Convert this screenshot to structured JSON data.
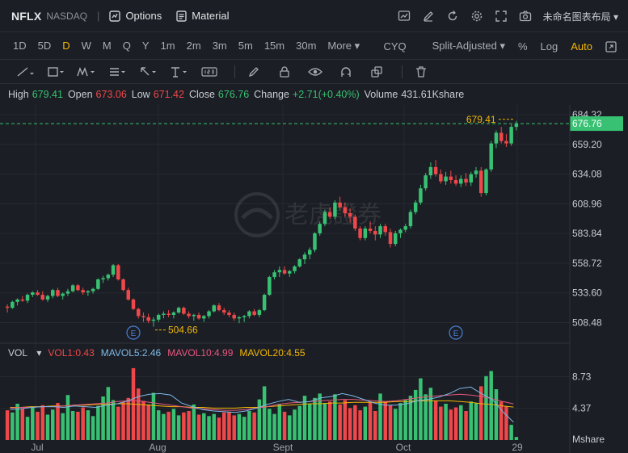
{
  "header": {
    "symbol": "NFLX",
    "exchange": "NASDAQ",
    "options_label": "Options",
    "material_label": "Material",
    "layout_label": "未命名图表布局"
  },
  "periods": [
    "1D",
    "5D",
    "D",
    "W",
    "M",
    "Q",
    "Y",
    "1m",
    "2m",
    "3m",
    "5m",
    "15m",
    "30m",
    "More"
  ],
  "active_period": "D",
  "period_right": {
    "cyq": "CYQ",
    "adjust": "Split-Adjusted",
    "percent": "%",
    "log": "Log",
    "auto": "Auto"
  },
  "info": {
    "high_label": "High",
    "high": "679.41",
    "open_label": "Open",
    "open": "673.06",
    "low_label": "Low",
    "low": "671.42",
    "close_label": "Close",
    "close": "676.76",
    "change_label": "Change",
    "change": "+2.71(+0.40%)",
    "volume_label": "Volume",
    "volume": "431.61Kshare"
  },
  "price_axis": {
    "ticks": [
      684.32,
      659.2,
      634.08,
      608.96,
      583.84,
      558.72,
      533.6,
      508.48
    ],
    "current": "676.76",
    "high_marker": "679.41",
    "low_marker": "504.66"
  },
  "volume": {
    "label": "VOL",
    "vol1": "VOL1:0.43",
    "mavol5": "MAVOL5:2.46",
    "mavol10": "MAVOL10:4.99",
    "mavol20": "MAVOL20:4.55",
    "ticks": [
      "8.73",
      "4.37"
    ],
    "unit": "Mshare"
  },
  "date_labels": [
    "Jul",
    "Aug",
    "Sept",
    "Oct",
    "29"
  ],
  "watermark": "老虎證券",
  "colors": {
    "up": "#38c172",
    "down": "#f0484a",
    "accent": "#f2b705",
    "bg": "#1b1e24"
  },
  "chart_data": {
    "type": "candlestick",
    "x_axis": [
      "Jul",
      "Aug",
      "Sept",
      "Oct",
      "29"
    ],
    "y_range": [
      495,
      690
    ],
    "candles": [
      [
        522,
        524,
        517,
        521
      ],
      [
        521,
        527,
        520,
        526
      ],
      [
        526,
        529,
        523,
        528
      ],
      [
        528,
        531,
        526,
        527
      ],
      [
        527,
        533,
        525,
        532
      ],
      [
        532,
        535,
        530,
        534
      ],
      [
        534,
        536,
        531,
        532
      ],
      [
        532,
        535,
        527,
        528
      ],
      [
        528,
        532,
        526,
        531
      ],
      [
        531,
        537,
        529,
        536
      ],
      [
        536,
        538,
        530,
        531
      ],
      [
        531,
        534,
        528,
        533
      ],
      [
        533,
        537,
        531,
        535
      ],
      [
        535,
        541,
        534,
        540
      ],
      [
        540,
        541,
        535,
        536
      ],
      [
        536,
        538,
        532,
        534
      ],
      [
        534,
        536,
        531,
        535
      ],
      [
        535,
        538,
        533,
        537
      ],
      [
        537,
        546,
        536,
        545
      ],
      [
        545,
        548,
        542,
        546
      ],
      [
        546,
        550,
        544,
        549
      ],
      [
        549,
        558,
        547,
        557
      ],
      [
        557,
        558,
        544,
        545
      ],
      [
        545,
        546,
        535,
        536
      ],
      [
        536,
        538,
        527,
        528
      ],
      [
        528,
        529,
        519,
        520
      ],
      [
        520,
        521,
        512,
        514
      ],
      [
        514,
        517,
        509,
        513
      ],
      [
        513,
        516,
        508,
        510
      ],
      [
        510,
        513,
        505,
        511
      ],
      [
        511,
        516,
        509,
        515
      ],
      [
        515,
        518,
        512,
        516
      ],
      [
        516,
        519,
        513,
        515
      ],
      [
        515,
        518,
        512,
        517
      ],
      [
        517,
        522,
        516,
        521
      ],
      [
        521,
        522,
        515,
        516
      ],
      [
        516,
        518,
        512,
        514
      ],
      [
        514,
        516,
        510,
        515
      ],
      [
        515,
        517,
        511,
        512
      ],
      [
        512,
        515,
        509,
        514
      ],
      [
        514,
        519,
        512,
        518
      ],
      [
        518,
        524,
        517,
        523
      ],
      [
        523,
        525,
        518,
        519
      ],
      [
        519,
        521,
        515,
        517
      ],
      [
        517,
        519,
        513,
        515
      ],
      [
        515,
        517,
        510,
        512
      ],
      [
        512,
        514,
        508,
        513
      ],
      [
        513,
        515,
        509,
        514
      ],
      [
        514,
        519,
        512,
        518
      ],
      [
        518,
        520,
        514,
        515
      ],
      [
        515,
        520,
        513,
        519
      ],
      [
        519,
        533,
        518,
        532
      ],
      [
        532,
        548,
        531,
        547
      ],
      [
        547,
        553,
        545,
        551
      ],
      [
        551,
        556,
        547,
        553
      ],
      [
        553,
        556,
        549,
        550
      ],
      [
        550,
        553,
        547,
        552
      ],
      [
        552,
        557,
        550,
        556
      ],
      [
        556,
        563,
        555,
        562
      ],
      [
        562,
        568,
        558,
        566
      ],
      [
        566,
        572,
        562,
        570
      ],
      [
        570,
        585,
        568,
        584
      ],
      [
        584,
        594,
        582,
        592
      ],
      [
        592,
        604,
        590,
        602
      ],
      [
        602,
        606,
        596,
        598
      ],
      [
        598,
        612,
        596,
        610
      ],
      [
        610,
        615,
        604,
        606
      ],
      [
        606,
        610,
        598,
        601
      ],
      [
        601,
        605,
        593,
        598
      ],
      [
        598,
        600,
        586,
        588
      ],
      [
        588,
        590,
        578,
        580
      ],
      [
        580,
        590,
        578,
        588
      ],
      [
        588,
        594,
        584,
        586
      ],
      [
        586,
        590,
        578,
        583
      ],
      [
        583,
        592,
        580,
        590
      ],
      [
        590,
        592,
        582,
        585
      ],
      [
        585,
        588,
        572,
        575
      ],
      [
        575,
        586,
        573,
        584
      ],
      [
        584,
        588,
        580,
        587
      ],
      [
        587,
        592,
        585,
        590
      ],
      [
        590,
        604,
        588,
        602
      ],
      [
        602,
        612,
        600,
        610
      ],
      [
        610,
        625,
        608,
        622
      ],
      [
        622,
        635,
        620,
        633
      ],
      [
        633,
        644,
        630,
        640
      ],
      [
        640,
        646,
        632,
        634
      ],
      [
        634,
        638,
        626,
        628
      ],
      [
        628,
        636,
        625,
        632
      ],
      [
        632,
        637,
        626,
        629
      ],
      [
        629,
        633,
        624,
        626
      ],
      [
        626,
        633,
        623,
        630
      ],
      [
        630,
        635,
        624,
        627
      ],
      [
        627,
        636,
        624,
        634
      ],
      [
        634,
        640,
        631,
        637
      ],
      [
        637,
        640,
        615,
        618
      ],
      [
        618,
        639,
        616,
        638
      ],
      [
        638,
        662,
        636,
        660
      ],
      [
        660,
        671,
        656,
        669
      ],
      [
        669,
        674,
        660,
        662
      ],
      [
        662,
        668,
        657,
        660
      ],
      [
        660,
        676,
        658,
        674
      ],
      [
        674,
        679,
        671,
        677
      ]
    ],
    "volumes": [
      4.1,
      3.8,
      5.0,
      4.4,
      3.2,
      4.6,
      3.9,
      4.8,
      3.5,
      4.2,
      5.1,
      3.7,
      6.2,
      4.0,
      3.9,
      4.5,
      4.1,
      3.3,
      4.7,
      6.0,
      7.3,
      5.5,
      4.6,
      5.2,
      5.8,
      9.9,
      7.1,
      5.4,
      4.9,
      6.5,
      4.1,
      3.6,
      3.9,
      4.3,
      3.4,
      3.8,
      4.0,
      4.9,
      3.5,
      3.7,
      3.3,
      3.6,
      3.1,
      3.8,
      3.9,
      3.4,
      3.6,
      3.2,
      4.0,
      3.8,
      5.6,
      7.4,
      4.3,
      3.6,
      5.0,
      3.9,
      3.4,
      4.2,
      4.7,
      6.1,
      5.0,
      5.8,
      6.4,
      5.1,
      5.3,
      6.3,
      4.9,
      5.5,
      4.4,
      4.8,
      4.1,
      4.6,
      5.2,
      4.0,
      6.4,
      5.3,
      4.8,
      4.3,
      5.1,
      5.5,
      6.1,
      6.9,
      8.5,
      6.3,
      7.2,
      5.4,
      4.6,
      5.0,
      4.2,
      4.5,
      4.8,
      4.0,
      5.3,
      5.1,
      7.4,
      8.8,
      9.5,
      7.0,
      5.3,
      4.6,
      2.1,
      0.43
    ],
    "mavol5": [
      4.2,
      4.3,
      4.5,
      4.6,
      4.6,
      4.5,
      4.7,
      4.6,
      4.5,
      4.8,
      5.0,
      5.4,
      6.0,
      6.3,
      6.4,
      6.2,
      5.1,
      4.6,
      4.2,
      4.0,
      3.9,
      3.8,
      4.0,
      4.4,
      4.9,
      5.3,
      5.6,
      5.2,
      5.3,
      5.8,
      6.0,
      6.4,
      6.1,
      5.6,
      5.1,
      4.8,
      4.8,
      5.0,
      5.4,
      5.6,
      5.9,
      6.4,
      7.1,
      7.3,
      6.4,
      5.6,
      3.9,
      2.46
    ],
    "mavol10": [
      4.4,
      4.5,
      4.5,
      4.6,
      4.6,
      4.7,
      4.8,
      4.9,
      5.0,
      5.1,
      5.3,
      5.4,
      5.4,
      5.2,
      5.0,
      4.8,
      4.6,
      4.4,
      4.3,
      4.2,
      4.1,
      4.1,
      4.2,
      4.4,
      4.6,
      4.9,
      5.1,
      5.2,
      5.3,
      5.4,
      5.5,
      5.6,
      5.6,
      5.5,
      5.4,
      5.3,
      5.4,
      5.6,
      5.8,
      6.0,
      6.1,
      6.2,
      6.3,
      6.2,
      6.0,
      5.7,
      5.3,
      4.99
    ],
    "mavol20": [
      4.5,
      4.5,
      4.6,
      4.6,
      4.7,
      4.7,
      4.8,
      4.8,
      4.9,
      4.9,
      5.0,
      5.0,
      4.9,
      4.8,
      4.7,
      4.6,
      4.6,
      4.5,
      4.5,
      4.4,
      4.4,
      4.4,
      4.5,
      4.5,
      4.6,
      4.7,
      4.8,
      4.9,
      5.0,
      5.0,
      5.1,
      5.1,
      5.2,
      5.2,
      5.2,
      5.2,
      5.3,
      5.3,
      5.4,
      5.4,
      5.4,
      5.4,
      5.3,
      5.2,
      5.0,
      4.9,
      4.7,
      4.55
    ]
  }
}
